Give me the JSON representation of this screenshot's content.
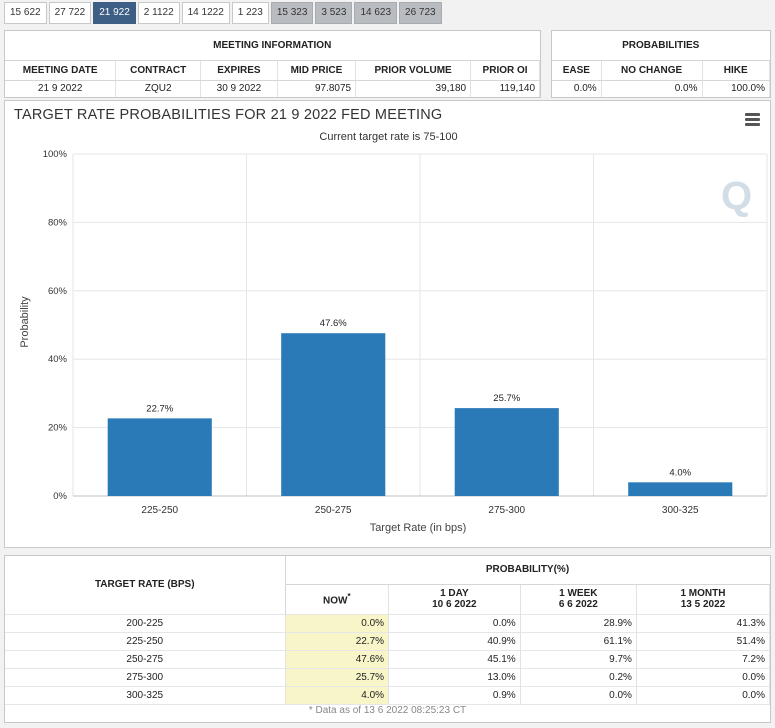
{
  "tabs": [
    {
      "label": "15 622",
      "state": "normal"
    },
    {
      "label": "27 722",
      "state": "normal"
    },
    {
      "label": "21 922",
      "state": "active"
    },
    {
      "label": "2 1122",
      "state": "normal"
    },
    {
      "label": "14 1222",
      "state": "normal"
    },
    {
      "label": "1 223",
      "state": "normal"
    },
    {
      "label": "15 323",
      "state": "future"
    },
    {
      "label": "3 523",
      "state": "future"
    },
    {
      "label": "14 623",
      "state": "future"
    },
    {
      "label": "26 723",
      "state": "future"
    }
  ],
  "meeting": {
    "title": "MEETING INFORMATION",
    "headers": [
      "MEETING DATE",
      "CONTRACT",
      "EXPIRES",
      "MID PRICE",
      "PRIOR VOLUME",
      "PRIOR OI"
    ],
    "row": [
      "21 9 2022",
      "ZQU2",
      "30 9 2022",
      "97.8075",
      "39,180",
      "119,140"
    ]
  },
  "probabilities": {
    "title": "PROBABILITIES",
    "headers": [
      "EASE",
      "NO CHANGE",
      "HIKE"
    ],
    "row": [
      "0.0%",
      "0.0%",
      "100.0%"
    ]
  },
  "chart_data": {
    "type": "bar",
    "title": "TARGET RATE PROBABILITIES FOR 21 9 2022 FED MEETING",
    "subtitle": "Current target rate is 75-100",
    "categories": [
      "225-250",
      "250-275",
      "275-300",
      "300-325"
    ],
    "values": [
      22.7,
      47.6,
      25.7,
      4.0
    ],
    "data_labels": [
      "22.7%",
      "47.6%",
      "25.7%",
      "4.0%"
    ],
    "xlabel": "Target Rate (in bps)",
    "ylabel": "Probability",
    "ylim": [
      0,
      100
    ],
    "yticks": [
      0,
      20,
      40,
      60,
      80,
      100
    ],
    "ytick_labels": [
      "0%",
      "20%",
      "40%",
      "60%",
      "80%",
      "100%"
    ],
    "color": "#2a7ab8",
    "grid": true,
    "legend": "none"
  },
  "rate_table": {
    "left_header": "TARGET RATE (BPS)",
    "group_header": "PROBABILITY(%)",
    "columns": [
      {
        "line1": "NOW",
        "line2": "",
        "marker": "*"
      },
      {
        "line1": "1 DAY",
        "line2": "10 6 2022",
        "marker": ""
      },
      {
        "line1": "1 WEEK",
        "line2": "6 6 2022",
        "marker": ""
      },
      {
        "line1": "1 MONTH",
        "line2": "13 5 2022",
        "marker": ""
      }
    ],
    "rows": [
      {
        "rate": "200-225",
        "values": [
          "0.0%",
          "0.0%",
          "28.9%",
          "41.3%"
        ]
      },
      {
        "rate": "225-250",
        "values": [
          "22.7%",
          "40.9%",
          "61.1%",
          "51.4%"
        ]
      },
      {
        "rate": "250-275",
        "values": [
          "47.6%",
          "45.1%",
          "9.7%",
          "7.2%"
        ]
      },
      {
        "rate": "275-300",
        "values": [
          "25.7%",
          "13.0%",
          "0.2%",
          "0.0%"
        ]
      },
      {
        "rate": "300-325",
        "values": [
          "4.0%",
          "0.9%",
          "0.0%",
          "0.0%"
        ]
      }
    ],
    "footnote": "* Data as of 13 6 2022 08:25:23 CT"
  },
  "icons": {
    "menu": "hamburger-menu-icon",
    "watermark": "q-logo-watermark"
  }
}
